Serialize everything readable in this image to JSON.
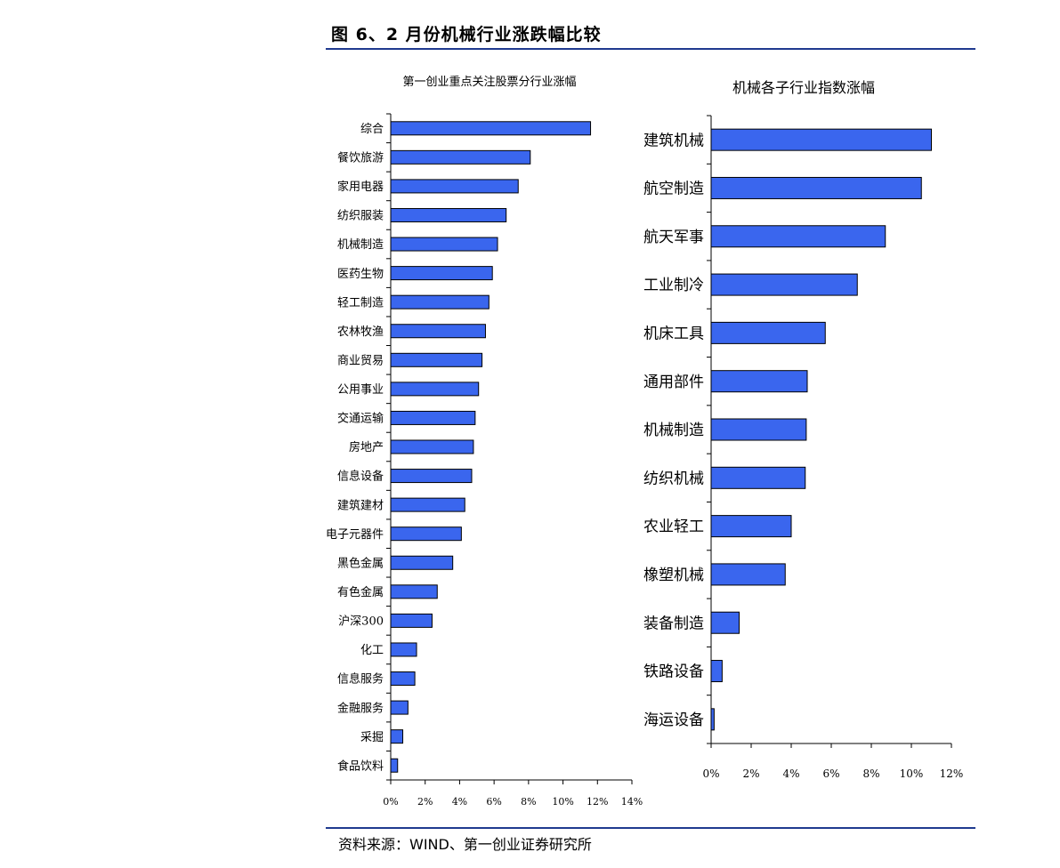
{
  "header": {
    "figure_title": "图 6、2 月份机械行业涨跌幅比较"
  },
  "footer": {
    "source": "资料来源：WIND、第一创业证券研究所"
  },
  "colors": {
    "bar_fill": "#3A66EE",
    "bar_stroke": "#000000",
    "rule": "#1f3a8f"
  },
  "chart_data": [
    {
      "type": "bar",
      "orientation": "horizontal",
      "title": "第一创业重点关注股票分行业涨幅",
      "categories": [
        "综合",
        "餐饮旅游",
        "家用电器",
        "纺织服装",
        "机械制造",
        "医药生物",
        "轻工制造",
        "农林牧渔",
        "商业贸易",
        "公用事业",
        "交通运输",
        "房地产",
        "信息设备",
        "建筑建材",
        "电子元器件",
        "黑色金属",
        "有色金属",
        "沪深300",
        "化工",
        "信息服务",
        "金融服务",
        "采掘",
        "食品饮料"
      ],
      "values": [
        11.6,
        8.1,
        7.4,
        6.7,
        6.2,
        5.9,
        5.7,
        5.5,
        5.3,
        5.1,
        4.9,
        4.8,
        4.7,
        4.3,
        4.1,
        3.6,
        2.7,
        2.4,
        1.5,
        1.4,
        1.0,
        0.7,
        0.4
      ],
      "xlim": [
        0,
        14
      ],
      "xticks": [
        "0%",
        "2%",
        "4%",
        "6%",
        "8%",
        "10%",
        "12%",
        "14%"
      ]
    },
    {
      "type": "bar",
      "orientation": "horizontal",
      "title": "机械各子行业指数涨幅",
      "categories": [
        "建筑机械",
        "航空制造",
        "航天军事",
        "工业制冷",
        "机床工具",
        "通用部件",
        "机械制造",
        "纺织机械",
        "农业轻工",
        "橡塑机械",
        "装备制造",
        "铁路设备",
        "海运设备"
      ],
      "values": [
        11.0,
        10.5,
        8.7,
        7.3,
        5.7,
        4.8,
        4.75,
        4.7,
        4.0,
        3.7,
        1.4,
        0.55,
        0.15
      ],
      "xlim": [
        0,
        12
      ],
      "xticks": [
        "0%",
        "2%",
        "4%",
        "6%",
        "8%",
        "10%",
        "12%"
      ]
    }
  ]
}
